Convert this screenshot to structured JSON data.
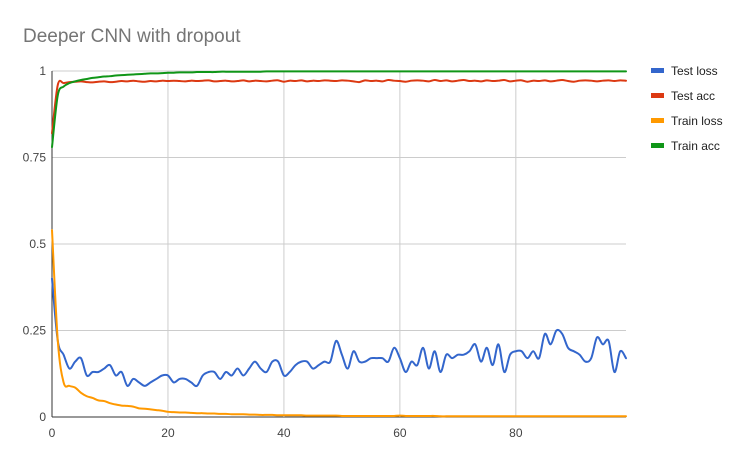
{
  "chart_data": {
    "type": "line",
    "title": "Deeper CNN with dropout",
    "xlabel": "",
    "ylabel": "",
    "xlim": [
      0,
      99
    ],
    "ylim": [
      0,
      1
    ],
    "x_ticks": [
      0,
      20,
      40,
      60,
      80
    ],
    "y_ticks": [
      0,
      0.25,
      0.5,
      0.75,
      1
    ],
    "y_tick_labels": [
      "0",
      "0.25",
      "0.5",
      "0.75",
      "1"
    ],
    "x_tick_labels": [
      "0",
      "20",
      "40",
      "60",
      "80"
    ],
    "grid": true,
    "legend_position": "right",
    "x": [
      0,
      1,
      2,
      3,
      4,
      5,
      6,
      7,
      8,
      9,
      10,
      11,
      12,
      13,
      14,
      15,
      16,
      17,
      18,
      19,
      20,
      21,
      22,
      23,
      24,
      25,
      26,
      27,
      28,
      29,
      30,
      31,
      32,
      33,
      34,
      35,
      36,
      37,
      38,
      39,
      40,
      41,
      42,
      43,
      44,
      45,
      46,
      47,
      48,
      49,
      50,
      51,
      52,
      53,
      54,
      55,
      56,
      57,
      58,
      59,
      60,
      61,
      62,
      63,
      64,
      65,
      66,
      67,
      68,
      69,
      70,
      71,
      72,
      73,
      74,
      75,
      76,
      77,
      78,
      79,
      80,
      81,
      82,
      83,
      84,
      85,
      86,
      87,
      88,
      89,
      90,
      91,
      92,
      93,
      94,
      95,
      96,
      97,
      98,
      99
    ],
    "series": [
      {
        "name": "Test loss",
        "color": "#3366cc",
        "values": [
          0.4,
          0.22,
          0.18,
          0.14,
          0.16,
          0.17,
          0.12,
          0.13,
          0.13,
          0.14,
          0.15,
          0.12,
          0.13,
          0.09,
          0.11,
          0.1,
          0.09,
          0.1,
          0.11,
          0.12,
          0.12,
          0.1,
          0.11,
          0.11,
          0.1,
          0.09,
          0.12,
          0.13,
          0.13,
          0.11,
          0.13,
          0.12,
          0.14,
          0.12,
          0.14,
          0.16,
          0.14,
          0.13,
          0.16,
          0.16,
          0.12,
          0.13,
          0.15,
          0.16,
          0.16,
          0.14,
          0.15,
          0.16,
          0.16,
          0.22,
          0.18,
          0.14,
          0.19,
          0.16,
          0.16,
          0.17,
          0.17,
          0.17,
          0.16,
          0.2,
          0.17,
          0.13,
          0.16,
          0.15,
          0.2,
          0.14,
          0.19,
          0.13,
          0.18,
          0.17,
          0.18,
          0.18,
          0.19,
          0.21,
          0.16,
          0.2,
          0.15,
          0.21,
          0.13,
          0.18,
          0.19,
          0.19,
          0.17,
          0.19,
          0.17,
          0.24,
          0.21,
          0.25,
          0.24,
          0.2,
          0.19,
          0.18,
          0.16,
          0.17,
          0.23,
          0.21,
          0.22,
          0.13,
          0.19,
          0.17
        ]
      },
      {
        "name": "Test acc",
        "color": "#dc3912",
        "values": [
          0.82,
          0.96,
          0.965,
          0.968,
          0.969,
          0.97,
          0.968,
          0.967,
          0.969,
          0.97,
          0.968,
          0.969,
          0.971,
          0.97,
          0.972,
          0.97,
          0.969,
          0.971,
          0.97,
          0.972,
          0.971,
          0.972,
          0.971,
          0.97,
          0.972,
          0.971,
          0.972,
          0.973,
          0.97,
          0.971,
          0.972,
          0.97,
          0.971,
          0.973,
          0.97,
          0.972,
          0.971,
          0.97,
          0.972,
          0.973,
          0.969,
          0.972,
          0.971,
          0.973,
          0.97,
          0.972,
          0.971,
          0.973,
          0.972,
          0.971,
          0.973,
          0.972,
          0.97,
          0.968,
          0.973,
          0.971,
          0.972,
          0.97,
          0.974,
          0.972,
          0.971,
          0.969,
          0.972,
          0.973,
          0.972,
          0.97,
          0.974,
          0.971,
          0.973,
          0.97,
          0.972,
          0.974,
          0.971,
          0.972,
          0.97,
          0.973,
          0.971,
          0.972,
          0.974,
          0.97,
          0.972,
          0.973,
          0.969,
          0.972,
          0.971,
          0.973,
          0.97,
          0.972,
          0.974,
          0.971,
          0.969,
          0.972,
          0.973,
          0.972,
          0.97,
          0.972,
          0.973,
          0.971,
          0.973,
          0.972
        ]
      },
      {
        "name": "Train loss",
        "color": "#ff9900",
        "values": [
          0.54,
          0.22,
          0.1,
          0.09,
          0.085,
          0.07,
          0.06,
          0.055,
          0.048,
          0.046,
          0.04,
          0.036,
          0.033,
          0.032,
          0.03,
          0.025,
          0.024,
          0.022,
          0.02,
          0.018,
          0.015,
          0.014,
          0.013,
          0.013,
          0.012,
          0.011,
          0.011,
          0.01,
          0.01,
          0.009,
          0.009,
          0.008,
          0.008,
          0.008,
          0.007,
          0.007,
          0.006,
          0.006,
          0.006,
          0.005,
          0.005,
          0.005,
          0.005,
          0.005,
          0.004,
          0.004,
          0.004,
          0.004,
          0.004,
          0.004,
          0.003,
          0.003,
          0.003,
          0.003,
          0.003,
          0.003,
          0.003,
          0.003,
          0.003,
          0.003,
          0.004,
          0.003,
          0.003,
          0.003,
          0.003,
          0.003,
          0.003,
          0.002,
          0.002,
          0.002,
          0.002,
          0.002,
          0.002,
          0.002,
          0.002,
          0.002,
          0.002,
          0.002,
          0.002,
          0.002,
          0.002,
          0.002,
          0.002,
          0.002,
          0.002,
          0.002,
          0.002,
          0.002,
          0.002,
          0.002,
          0.002,
          0.002,
          0.002,
          0.002,
          0.002,
          0.002,
          0.002,
          0.002,
          0.002,
          0.002
        ]
      },
      {
        "name": "Train acc",
        "color": "#109618",
        "values": [
          0.78,
          0.93,
          0.955,
          0.965,
          0.97,
          0.974,
          0.977,
          0.98,
          0.982,
          0.984,
          0.985,
          0.987,
          0.988,
          0.989,
          0.99,
          0.991,
          0.992,
          0.993,
          0.993,
          0.994,
          0.995,
          0.995,
          0.996,
          0.996,
          0.996,
          0.997,
          0.997,
          0.997,
          0.997,
          0.998,
          0.998,
          0.998,
          0.998,
          0.998,
          0.998,
          0.998,
          0.998,
          0.999,
          0.999,
          0.999,
          0.999,
          0.999,
          0.999,
          0.999,
          0.999,
          0.999,
          0.999,
          0.999,
          0.999,
          0.999,
          0.999,
          0.999,
          0.999,
          0.999,
          0.999,
          0.999,
          0.999,
          0.999,
          0.999,
          0.999,
          0.999,
          0.999,
          0.999,
          0.999,
          0.999,
          0.999,
          0.999,
          0.999,
          0.999,
          0.999,
          0.999,
          0.999,
          0.999,
          0.999,
          0.999,
          0.999,
          0.999,
          0.999,
          0.999,
          0.999,
          0.999,
          0.999,
          0.999,
          0.999,
          0.999,
          0.999,
          0.999,
          0.999,
          0.999,
          0.999,
          0.999,
          0.999,
          0.999,
          0.999,
          0.999,
          0.999,
          0.999,
          0.999,
          0.999,
          0.999
        ]
      }
    ]
  }
}
